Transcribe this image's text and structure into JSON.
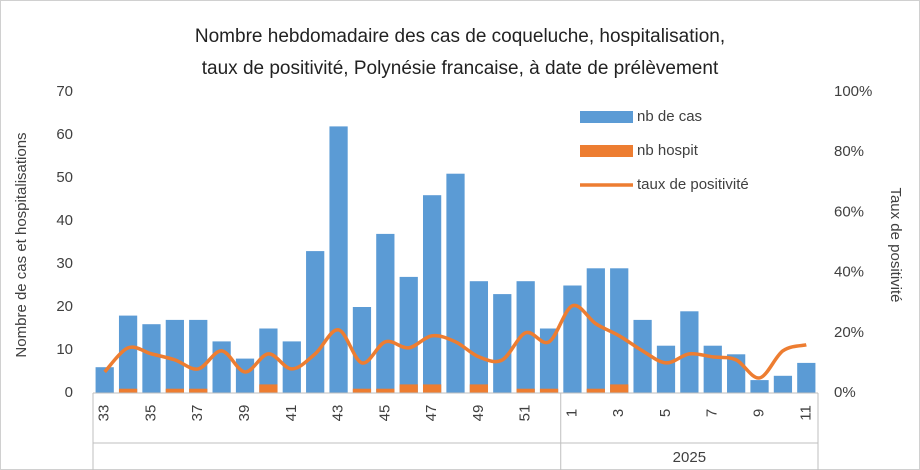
{
  "chart_data": {
    "type": "bar",
    "title": [
      "Nombre hebdomadaire des cas de coqueluche, hospitalisation,",
      "taux de positivité, Polynésie francaise, à date de prélèvement"
    ],
    "y_label": "Nombre de cas et hospitalisations",
    "y2_label": "Taux de positivité",
    "categories": [
      "33",
      null,
      "35",
      null,
      "37",
      null,
      "39",
      null,
      "41",
      null,
      "43",
      null,
      "45",
      null,
      "47",
      null,
      "49",
      null,
      "51",
      null,
      "1",
      null,
      "3",
      null,
      "5",
      null,
      "7",
      null,
      "9",
      null,
      "11"
    ],
    "x_groups": [
      {
        "label": null,
        "size": 20
      },
      {
        "label": "2025",
        "size": 11
      }
    ],
    "series": [
      {
        "name": "nb de cas",
        "type": "bar",
        "color": "#5b9bd5",
        "values": [
          6,
          18,
          16,
          17,
          17,
          12,
          8,
          15,
          12,
          33,
          62,
          20,
          37,
          27,
          46,
          51,
          26,
          23,
          26,
          15,
          25,
          29,
          29,
          17,
          11,
          19,
          11,
          9,
          3,
          4,
          7
        ]
      },
      {
        "name": "nb hospit",
        "type": "bar",
        "color": "#ed7d31",
        "values": [
          0,
          1,
          0,
          1,
          1,
          0,
          0,
          2,
          0,
          0,
          0,
          1,
          1,
          2,
          2,
          0,
          2,
          0,
          1,
          1,
          0,
          1,
          2,
          0,
          0,
          0,
          0,
          0,
          0,
          0,
          0
        ]
      },
      {
        "name": "taux de positivité",
        "type": "line",
        "axis": "y2",
        "color": "#ed7d31",
        "values": [
          7,
          15,
          13,
          11,
          8,
          14,
          7,
          13,
          8,
          13,
          21,
          10,
          17,
          15,
          19,
          17,
          12,
          11,
          20,
          17,
          29,
          23,
          19,
          14,
          10,
          13,
          12,
          11,
          5,
          14,
          16
        ]
      }
    ],
    "ylim": [
      0,
      70
    ],
    "yticks": [
      0,
      10,
      20,
      30,
      40,
      50,
      60,
      70
    ],
    "y2lim": [
      0,
      100
    ],
    "y2ticks": [
      {
        "value": 0,
        "label": "0%"
      },
      {
        "value": 20,
        "label": "20%"
      },
      {
        "value": 40,
        "label": "40%"
      },
      {
        "value": 60,
        "label": "60%"
      },
      {
        "value": 80,
        "label": "80%"
      },
      {
        "value": 100,
        "label": "100%"
      }
    ],
    "grid": false,
    "legend": "upper right"
  }
}
